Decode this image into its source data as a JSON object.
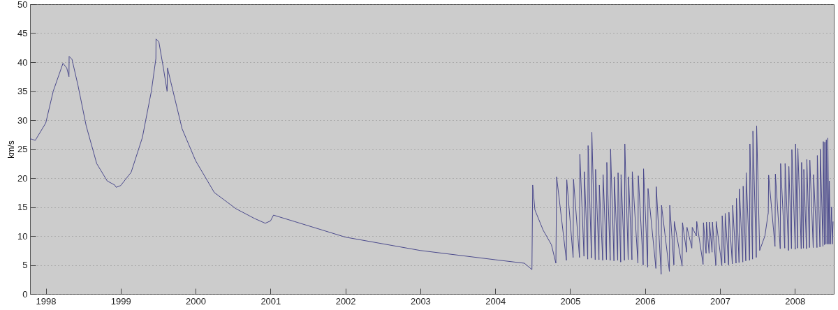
{
  "chart_data": {
    "type": "line",
    "ylabel": "km/s",
    "color": "#4b4a8c",
    "grid": "y",
    "xlim": [
      1997.79,
      2008.52
    ],
    "ylim": [
      0,
      50
    ],
    "xticks": [
      1998,
      1999,
      2000,
      2001,
      2002,
      2003,
      2004,
      2005,
      2006,
      2007,
      2008
    ],
    "yticks": [
      0,
      5,
      10,
      15,
      20,
      25,
      30,
      35,
      40,
      45,
      50
    ],
    "x": [
      1997.79,
      1997.86,
      1998.0,
      1998.1,
      1998.23,
      1998.28,
      1998.31,
      1998.312,
      1998.35,
      1998.43,
      1998.54,
      1998.68,
      1998.82,
      1998.92,
      1998.94,
      1999.0,
      1999.14,
      1999.29,
      1999.41,
      1999.47,
      1999.472,
      1999.51,
      1999.57,
      1999.62,
      1999.625,
      1999.68,
      1999.82,
      2000.0,
      2000.25,
      2000.54,
      2000.79,
      2000.93,
      2001.0,
      2001.04,
      2001.32,
      2002.0,
      2003.0,
      2004.0,
      2004.39,
      2004.49,
      2004.5,
      2004.53,
      2004.64,
      2004.75,
      2004.81,
      2004.82,
      2004.95,
      2004.955,
      2005.04,
      2005.045,
      2005.125,
      2005.13,
      2005.185,
      2005.19,
      2005.235,
      2005.24,
      2005.285,
      2005.29,
      2005.335,
      2005.34,
      2005.385,
      2005.39,
      2005.435,
      2005.44,
      2005.485,
      2005.49,
      2005.535,
      2005.54,
      2005.585,
      2005.59,
      2005.635,
      2005.64,
      2005.675,
      2005.68,
      2005.725,
      2005.73,
      2005.775,
      2005.78,
      2005.825,
      2005.83,
      2005.905,
      2005.91,
      2005.975,
      2005.98,
      2006.035,
      2006.04,
      2006.145,
      2006.15,
      2006.215,
      2006.22,
      2006.325,
      2006.33,
      2006.385,
      2006.39,
      2006.495,
      2006.5,
      2006.555,
      2006.56,
      2006.625,
      2006.63,
      2006.685,
      2006.69,
      2006.775,
      2006.78,
      2006.815,
      2006.82,
      2006.855,
      2006.86,
      2006.895,
      2006.9,
      2006.945,
      2006.95,
      2007.025,
      2007.03,
      2007.065,
      2007.07,
      2007.115,
      2007.12,
      2007.165,
      2007.17,
      2007.215,
      2007.22,
      2007.255,
      2007.26,
      2007.305,
      2007.31,
      2007.345,
      2007.35,
      2007.395,
      2007.4,
      2007.435,
      2007.44,
      2007.485,
      2007.49,
      2007.53,
      2007.6,
      2007.645,
      2007.65,
      2007.735,
      2007.74,
      2007.805,
      2007.81,
      2007.865,
      2007.87,
      2007.915,
      2007.92,
      2007.955,
      2007.96,
      2008.005,
      2008.01,
      2008.035,
      2008.04,
      2008.085,
      2008.09,
      2008.115,
      2008.12,
      2008.155,
      2008.16,
      2008.195,
      2008.2,
      2008.245,
      2008.25,
      2008.295,
      2008.3,
      2008.335,
      2008.34,
      2008.375,
      2008.38,
      2008.395,
      2008.4,
      2008.415,
      2008.42,
      2008.435,
      2008.44,
      2008.455,
      2008.46,
      2008.475,
      2008.49,
      2008.5,
      2008.51
    ],
    "values": [
      26.8,
      26.5,
      29.5,
      35,
      39.8,
      39,
      37.5,
      41,
      40.5,
      36,
      29,
      22.5,
      19.5,
      18.8,
      18.4,
      18.7,
      21,
      27,
      35,
      40.6,
      44,
      43.5,
      39,
      35,
      39,
      36,
      28.5,
      23,
      17.5,
      14.7,
      13,
      12.2,
      12.6,
      13.6,
      12.5,
      9.8,
      7.5,
      5.9,
      5.3,
      4.2,
      18.8,
      14.5,
      11,
      8.5,
      5.3,
      20.2,
      5.8,
      19.7,
      6.3,
      19.8,
      6.3,
      24.1,
      6.5,
      21.1,
      6.0,
      25.6,
      6.2,
      27.9,
      5.9,
      21.5,
      5.9,
      18.8,
      5.8,
      20.6,
      5.9,
      22.7,
      5.8,
      25.0,
      5.7,
      20.2,
      5.8,
      20.9,
      5.5,
      20.6,
      5.8,
      25.9,
      5.9,
      20.2,
      5.9,
      21.1,
      5.3,
      20.4,
      5.0,
      21.6,
      4.6,
      18.2,
      4.4,
      18.5,
      3.4,
      15.3,
      3.9,
      15.3,
      5.0,
      12.5,
      4.8,
      12.3,
      7.2,
      11.5,
      7.9,
      11.5,
      10,
      12.5,
      5.1,
      12.3,
      7.0,
      12.4,
      7.0,
      12.4,
      7.2,
      12.4,
      4.9,
      12.5,
      4.9,
      13.5,
      5.3,
      13.9,
      5.0,
      14.1,
      5.2,
      15.3,
      5.3,
      16.5,
      5.4,
      18.1,
      5.5,
      18.6,
      5.7,
      20.9,
      5.8,
      25.9,
      6.0,
      28.1,
      6.3,
      29.0,
      7.5,
      10,
      14,
      20.5,
      8.2,
      20.7,
      7.8,
      22.5,
      7.9,
      22.5,
      7.5,
      22.0,
      7.8,
      24.9,
      7.7,
      25.9,
      7.9,
      25.1,
      7.8,
      22.7,
      7.9,
      21.5,
      7.8,
      23.2,
      8.0,
      23.1,
      8.0,
      20.6,
      8.0,
      23.9,
      8.1,
      25.0,
      8.2,
      26.3,
      8.5,
      26.2,
      8.6,
      26.6,
      8.6,
      26.9,
      8.6,
      19.5,
      8.6,
      15,
      8.6,
      12.5
    ]
  }
}
